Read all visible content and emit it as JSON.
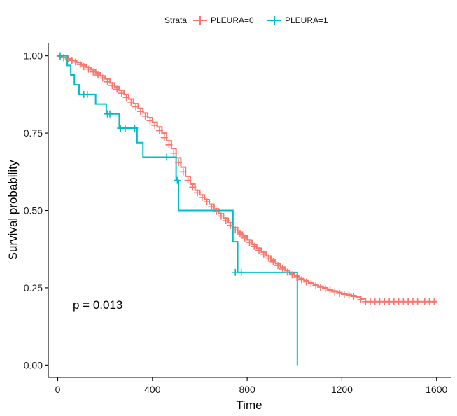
{
  "chart_data": {
    "type": "line",
    "subtype": "kaplan-meier step",
    "xlabel": "Time",
    "ylabel": "Survival probability",
    "xlim": [
      -40,
      1660
    ],
    "ylim": [
      -0.04,
      1.04
    ],
    "x_ticks": [
      0,
      400,
      800,
      1200,
      1600
    ],
    "y_ticks": [
      0.0,
      0.25,
      0.5,
      0.75,
      1.0
    ],
    "x_tick_labels": [
      "0",
      "400",
      "800",
      "1200",
      "1600"
    ],
    "y_tick_labels": [
      "0.00",
      "0.25",
      "0.50",
      "0.75",
      "1.00"
    ],
    "grid": false,
    "legend": {
      "title": "Strata",
      "position": "top",
      "entries": [
        "PLEURA=0",
        "PLEURA=1"
      ]
    },
    "annotation": "p = 0.013",
    "series": [
      {
        "name": "PLEURA=0",
        "color": "#F8766D",
        "x": [
          0,
          20,
          40,
          60,
          80,
          100,
          120,
          140,
          160,
          180,
          200,
          220,
          240,
          260,
          280,
          300,
          320,
          340,
          360,
          380,
          400,
          420,
          440,
          460,
          480,
          500,
          520,
          540,
          560,
          580,
          600,
          620,
          640,
          660,
          680,
          700,
          720,
          740,
          760,
          780,
          800,
          820,
          840,
          860,
          880,
          900,
          920,
          940,
          960,
          980,
          1000,
          1020,
          1040,
          1060,
          1080,
          1100,
          1120,
          1140,
          1160,
          1180,
          1200,
          1220,
          1240,
          1260,
          1280,
          1300,
          1320,
          1600
        ],
        "y": [
          1.0,
          0.995,
          0.99,
          0.985,
          0.978,
          0.97,
          0.963,
          0.955,
          0.945,
          0.935,
          0.925,
          0.912,
          0.9,
          0.888,
          0.875,
          0.86,
          0.845,
          0.83,
          0.815,
          0.8,
          0.785,
          0.77,
          0.75,
          0.725,
          0.7,
          0.67,
          0.64,
          0.61,
          0.585,
          0.565,
          0.55,
          0.535,
          0.52,
          0.505,
          0.49,
          0.475,
          0.46,
          0.445,
          0.43,
          0.418,
          0.405,
          0.39,
          0.378,
          0.365,
          0.353,
          0.34,
          0.328,
          0.317,
          0.306,
          0.296,
          0.288,
          0.28,
          0.273,
          0.266,
          0.26,
          0.255,
          0.25,
          0.245,
          0.24,
          0.235,
          0.23,
          0.228,
          0.225,
          0.22,
          0.215,
          0.205,
          0.205,
          0.205
        ],
        "censor_x": [
          10,
          25,
          45,
          60,
          75,
          95,
          110,
          130,
          150,
          170,
          190,
          210,
          230,
          250,
          270,
          290,
          310,
          330,
          350,
          370,
          390,
          410,
          430,
          450,
          470,
          490,
          510,
          530,
          550,
          570,
          590,
          610,
          630,
          650,
          670,
          690,
          710,
          730,
          750,
          770,
          790,
          810,
          830,
          850,
          870,
          890,
          910,
          930,
          950,
          970,
          990,
          1010,
          1030,
          1050,
          1070,
          1090,
          1110,
          1130,
          1150,
          1170,
          1190,
          1210,
          1230,
          1250,
          1280,
          1300,
          1320,
          1340,
          1360,
          1380,
          1400,
          1420,
          1440,
          1460,
          1480,
          1500,
          1520,
          1550,
          1570,
          1590
        ],
        "censor_y": [
          0.998,
          0.994,
          0.99,
          0.985,
          0.98,
          0.972,
          0.965,
          0.957,
          0.948,
          0.938,
          0.928,
          0.916,
          0.904,
          0.892,
          0.879,
          0.865,
          0.85,
          0.835,
          0.82,
          0.805,
          0.79,
          0.775,
          0.758,
          0.735,
          0.712,
          0.685,
          0.655,
          0.625,
          0.597,
          0.575,
          0.557,
          0.542,
          0.528,
          0.512,
          0.497,
          0.482,
          0.467,
          0.452,
          0.437,
          0.424,
          0.411,
          0.397,
          0.384,
          0.371,
          0.359,
          0.346,
          0.334,
          0.322,
          0.311,
          0.301,
          0.292,
          0.284,
          0.276,
          0.269,
          0.263,
          0.257,
          0.252,
          0.247,
          0.242,
          0.237,
          0.232,
          0.229,
          0.226,
          0.222,
          0.212,
          0.205,
          0.205,
          0.205,
          0.205,
          0.205,
          0.205,
          0.205,
          0.205,
          0.205,
          0.205,
          0.205,
          0.205,
          0.205,
          0.205,
          0.205
        ]
      },
      {
        "name": "PLEURA=1",
        "color": "#00BFC4",
        "x": [
          0,
          40,
          55,
          70,
          90,
          120,
          160,
          205,
          260,
          335,
          360,
          470,
          500,
          510,
          740,
          760,
          1010,
          1012
        ],
        "y": [
          1.0,
          0.969,
          0.938,
          0.906,
          0.875,
          0.875,
          0.844,
          0.812,
          0.766,
          0.719,
          0.672,
          0.672,
          0.597,
          0.5,
          0.399,
          0.3,
          0.3,
          0.0
        ],
        "censor_x": [
          10,
          110,
          125,
          210,
          220,
          265,
          285,
          325,
          460,
          505,
          750,
          775
        ],
        "censor_y": [
          1.0,
          0.875,
          0.875,
          0.812,
          0.812,
          0.766,
          0.766,
          0.766,
          0.672,
          0.597,
          0.3,
          0.3
        ]
      }
    ]
  }
}
